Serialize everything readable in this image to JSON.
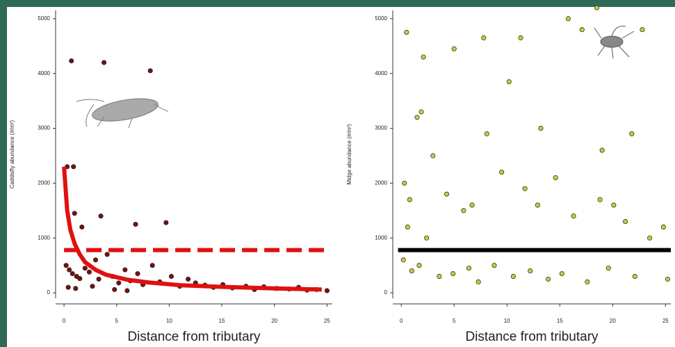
{
  "chart_data": [
    {
      "type": "scatter",
      "ylabel": "Caddisfly abundance (#/m²)",
      "xlabel": "Distance from tributary",
      "xlim": [
        -0.8,
        25.5
      ],
      "ylim": [
        -100,
        5150
      ],
      "xticks": [
        0,
        5,
        10,
        15,
        20,
        25
      ],
      "yticks": [
        0,
        1000,
        2000,
        3000,
        4000,
        5000
      ],
      "color": "#7a0f0f",
      "x": [
        0.7,
        3.8,
        8.2,
        0.3,
        0.9,
        1.0,
        3.5,
        6.8,
        9.7,
        1.7,
        0.2,
        0.5,
        0.8,
        1.2,
        1.5,
        2.0,
        2.4,
        3.0,
        3.3,
        4.1,
        4.6,
        5.2,
        5.8,
        6.3,
        7.0,
        7.5,
        8.4,
        9.1,
        10.2,
        11.0,
        11.8,
        12.5,
        13.4,
        14.2,
        15.1,
        16.0,
        17.3,
        18.1,
        19.0,
        20.2,
        21.4,
        22.3,
        23.1,
        24.0,
        25.0,
        0.4,
        1.1,
        2.7,
        4.8,
        6.0
      ],
      "values": [
        4230,
        4200,
        4050,
        2300,
        2300,
        1450,
        1400,
        1250,
        1280,
        1200,
        500,
        420,
        350,
        300,
        260,
        450,
        380,
        600,
        250,
        700,
        300,
        180,
        420,
        220,
        350,
        150,
        500,
        200,
        300,
        120,
        250,
        180,
        140,
        100,
        150,
        90,
        120,
        60,
        110,
        80,
        70,
        100,
        50,
        60,
        40,
        100,
        80,
        120,
        60,
        40
      ],
      "lines": [
        {
          "x": [
            0,
            0.3,
            0.6,
            1,
            1.5,
            2,
            3,
            4,
            6,
            8,
            11,
            15,
            20,
            24.5
          ],
          "values": [
            2300,
            1500,
            1150,
            900,
            700,
            560,
            420,
            330,
            240,
            190,
            140,
            110,
            80,
            60
          ],
          "color": "#e01010",
          "dashed": false
        },
        {
          "x": [
            0,
            25
          ],
          "values": [
            780,
            780
          ],
          "color": "#e01010",
          "dashed": true
        }
      ]
    },
    {
      "type": "scatter",
      "ylabel": "Midge abundance (#/m²)",
      "xlabel": "Distance from tributary",
      "xlim": [
        -0.8,
        25.5
      ],
      "ylim": [
        -100,
        5150
      ],
      "xticks": [
        0,
        5,
        10,
        15,
        20,
        25
      ],
      "yticks": [
        0,
        1000,
        2000,
        3000,
        4000,
        5000
      ],
      "color": "#c9c93a",
      "x": [
        0.5,
        2.1,
        5.0,
        7.8,
        10.2,
        11.3,
        15.8,
        17.1,
        18.5,
        22.8,
        1.5,
        1.9,
        3.0,
        0.3,
        0.8,
        6.7,
        8.1,
        13.2,
        19.0,
        21.8,
        0.6,
        2.4,
        4.3,
        5.9,
        9.5,
        11.7,
        12.9,
        14.6,
        16.3,
        18.8,
        20.1,
        21.2,
        23.5,
        24.8,
        0.2,
        1.0,
        1.7,
        3.6,
        4.9,
        6.4,
        7.3,
        8.8,
        10.6,
        12.2,
        13.9,
        15.2,
        17.6,
        19.6,
        22.1,
        25.2
      ],
      "values": [
        4750,
        4300,
        4450,
        4650,
        3850,
        4650,
        5000,
        4800,
        5200,
        4800,
        3200,
        3300,
        2500,
        2000,
        1700,
        1600,
        2900,
        3000,
        2600,
        2900,
        1200,
        1000,
        1800,
        1500,
        2200,
        1900,
        1600,
        2100,
        1400,
        1700,
        1600,
        1300,
        1000,
        1200,
        600,
        400,
        500,
        300,
        350,
        450,
        200,
        500,
        300,
        400,
        250,
        350,
        200,
        450,
        300,
        250
      ],
      "lines": [
        {
          "x": [
            -0.3,
            25.5
          ],
          "values": [
            780,
            780
          ],
          "color": "#000000",
          "dashed": false
        }
      ]
    }
  ]
}
